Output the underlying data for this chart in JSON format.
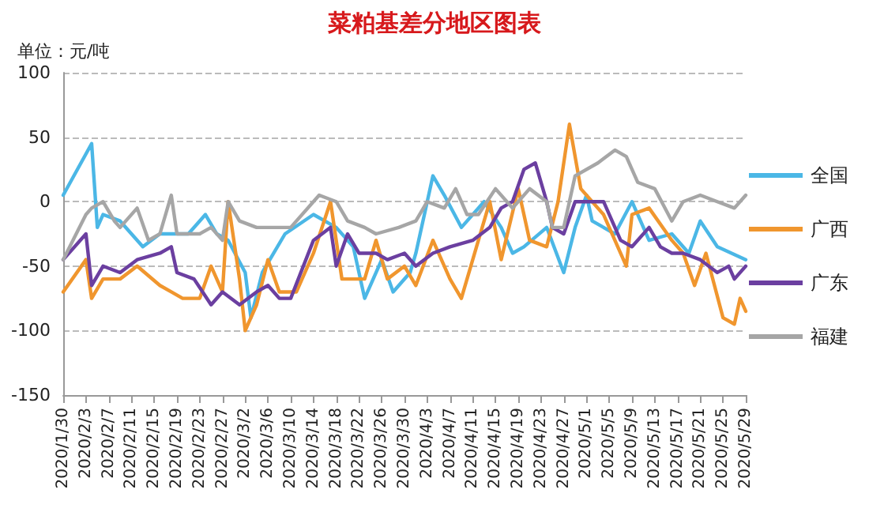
{
  "chart_data": {
    "type": "line",
    "title": "菜粕基差分地区图表",
    "ylabel": "单位：元/吨",
    "xlim": [
      "2020-01-30",
      "2020-05-29"
    ],
    "xticks": [
      {
        "value": "2020-01-30",
        "label": "2020/1/30"
      },
      {
        "value": "2020-02-03",
        "label": "2020/2/3"
      },
      {
        "value": "2020-02-07",
        "label": "2020/2/7"
      },
      {
        "value": "2020-02-11",
        "label": "2020/2/11"
      },
      {
        "value": "2020-02-15",
        "label": "2020/2/15"
      },
      {
        "value": "2020-02-19",
        "label": "2020/2/19"
      },
      {
        "value": "2020-02-23",
        "label": "2020/2/23"
      },
      {
        "value": "2020-02-27",
        "label": "2020/2/27"
      },
      {
        "value": "2020-03-02",
        "label": "2020/3/2"
      },
      {
        "value": "2020-03-06",
        "label": "2020/3/6"
      },
      {
        "value": "2020-03-10",
        "label": "2020/3/10"
      },
      {
        "value": "2020-03-14",
        "label": "2020/3/14"
      },
      {
        "value": "2020-03-18",
        "label": "2020/3/18"
      },
      {
        "value": "2020-03-22",
        "label": "2020/3/22"
      },
      {
        "value": "2020-03-26",
        "label": "2020/3/26"
      },
      {
        "value": "2020-03-30",
        "label": "2020/3/30"
      },
      {
        "value": "2020-04-03",
        "label": "2020/4/3"
      },
      {
        "value": "2020-04-07",
        "label": "2020/4/7"
      },
      {
        "value": "2020-04-11",
        "label": "2020/4/11"
      },
      {
        "value": "2020-04-15",
        "label": "2020/4/15"
      },
      {
        "value": "2020-04-19",
        "label": "2020/4/19"
      },
      {
        "value": "2020-04-23",
        "label": "2020/4/23"
      },
      {
        "value": "2020-04-27",
        "label": "2020/4/27"
      },
      {
        "value": "2020-05-01",
        "label": "2020/5/1"
      },
      {
        "value": "2020-05-05",
        "label": "2020/5/5"
      },
      {
        "value": "2020-05-09",
        "label": "2020/5/9"
      },
      {
        "value": "2020-05-13",
        "label": "2020/5/13"
      },
      {
        "value": "2020-05-17",
        "label": "2020/5/17"
      },
      {
        "value": "2020-05-21",
        "label": "2020/5/21"
      },
      {
        "value": "2020-05-25",
        "label": "2020/5/25"
      },
      {
        "value": "2020-05-29",
        "label": "2020/5/29"
      }
    ],
    "ylim": [
      -150,
      100
    ],
    "yticks": [
      -150,
      -100,
      -50,
      0,
      50,
      100
    ],
    "grid": "y",
    "legend": "right",
    "marker": "none",
    "series": [
      {
        "name": "全国",
        "color": "#4bb7e6",
        "x": [
          "2020-01-30",
          "2020-02-04",
          "2020-02-05",
          "2020-02-06",
          "2020-02-09",
          "2020-02-13",
          "2020-02-16",
          "2020-02-21",
          "2020-02-24",
          "2020-02-26",
          "2020-02-28",
          "2020-03-02",
          "2020-03-03",
          "2020-03-05",
          "2020-03-07",
          "2020-03-09",
          "2020-03-14",
          "2020-03-18",
          "2020-03-21",
          "2020-03-23",
          "2020-03-26",
          "2020-03-28",
          "2020-03-31",
          "2020-04-01",
          "2020-04-04",
          "2020-04-06",
          "2020-04-09",
          "2020-04-13",
          "2020-04-16",
          "2020-04-18",
          "2020-04-20",
          "2020-04-24",
          "2020-04-27",
          "2020-04-29",
          "2020-05-01",
          "2020-05-02",
          "2020-05-06",
          "2020-05-09",
          "2020-05-12",
          "2020-05-16",
          "2020-05-19",
          "2020-05-21",
          "2020-05-24",
          "2020-05-29"
        ],
        "values": [
          5,
          45,
          -20,
          -10,
          -15,
          -35,
          -25,
          -25,
          -10,
          -25,
          -30,
          -55,
          -90,
          -55,
          -40,
          -25,
          -10,
          -20,
          -35,
          -75,
          -45,
          -70,
          -55,
          -40,
          20,
          5,
          -20,
          0,
          -20,
          -40,
          -35,
          -20,
          -55,
          -20,
          5,
          -15,
          -25,
          0,
          -30,
          -25,
          -40,
          -15,
          -35,
          -45
        ]
      },
      {
        "name": "广西",
        "color": "#f0962e",
        "x": [
          "2020-01-30",
          "2020-02-03",
          "2020-02-04",
          "2020-02-06",
          "2020-02-09",
          "2020-02-12",
          "2020-02-16",
          "2020-02-18",
          "2020-02-20",
          "2020-02-23",
          "2020-02-25",
          "2020-02-27",
          "2020-02-28",
          "2020-03-01",
          "2020-03-02",
          "2020-03-04",
          "2020-03-06",
          "2020-03-08",
          "2020-03-11",
          "2020-03-14",
          "2020-03-17",
          "2020-03-19",
          "2020-03-23",
          "2020-03-25",
          "2020-03-27",
          "2020-03-30",
          "2020-04-01",
          "2020-04-04",
          "2020-04-07",
          "2020-04-09",
          "2020-04-12",
          "2020-04-14",
          "2020-04-16",
          "2020-04-19",
          "2020-04-21",
          "2020-04-24",
          "2020-04-26",
          "2020-04-28",
          "2020-04-30",
          "2020-05-04",
          "2020-05-08",
          "2020-05-09",
          "2020-05-12",
          "2020-05-16",
          "2020-05-18",
          "2020-05-20",
          "2020-05-22",
          "2020-05-25",
          "2020-05-27",
          "2020-05-28",
          "2020-05-29"
        ],
        "values": [
          -70,
          -45,
          -75,
          -60,
          -60,
          -50,
          -65,
          -70,
          -75,
          -75,
          -50,
          -70,
          0,
          -60,
          -100,
          -80,
          -45,
          -70,
          -70,
          -40,
          0,
          -60,
          -60,
          -30,
          -60,
          -50,
          -65,
          -30,
          -60,
          -75,
          -30,
          0,
          -45,
          10,
          -30,
          -35,
          0,
          60,
          10,
          -10,
          -50,
          -10,
          -5,
          -30,
          -40,
          -65,
          -40,
          -90,
          -95,
          -75,
          -85
        ]
      },
      {
        "name": "广东",
        "color": "#6b3fa0",
        "x": [
          "2020-01-30",
          "2020-02-03",
          "2020-02-04",
          "2020-02-06",
          "2020-02-09",
          "2020-02-12",
          "2020-02-16",
          "2020-02-18",
          "2020-02-19",
          "2020-02-22",
          "2020-02-25",
          "2020-02-27",
          "2020-03-01",
          "2020-03-04",
          "2020-03-06",
          "2020-03-08",
          "2020-03-10",
          "2020-03-14",
          "2020-03-17",
          "2020-03-18",
          "2020-03-20",
          "2020-03-22",
          "2020-03-25",
          "2020-03-27",
          "2020-03-30",
          "2020-04-01",
          "2020-04-04",
          "2020-04-07",
          "2020-04-11",
          "2020-04-14",
          "2020-04-16",
          "2020-04-18",
          "2020-04-20",
          "2020-04-22",
          "2020-04-24",
          "2020-04-25",
          "2020-04-27",
          "2020-04-29",
          "2020-05-04",
          "2020-05-07",
          "2020-05-09",
          "2020-05-12",
          "2020-05-14",
          "2020-05-16",
          "2020-05-18",
          "2020-05-21",
          "2020-05-24",
          "2020-05-26",
          "2020-05-27",
          "2020-05-29"
        ],
        "values": [
          -45,
          -25,
          -65,
          -50,
          -55,
          -45,
          -40,
          -35,
          -55,
          -60,
          -80,
          -70,
          -80,
          -70,
          -65,
          -75,
          -75,
          -30,
          -20,
          -50,
          -25,
          -40,
          -40,
          -45,
          -40,
          -50,
          -40,
          -35,
          -30,
          -20,
          -5,
          0,
          25,
          30,
          0,
          -20,
          -25,
          0,
          0,
          -30,
          -35,
          -20,
          -35,
          -40,
          -40,
          -45,
          -55,
          -50,
          -60,
          -50
        ]
      },
      {
        "name": "福建",
        "color": "#a6a6a6",
        "x": [
          "2020-01-30",
          "2020-02-03",
          "2020-02-04",
          "2020-02-06",
          "2020-02-08",
          "2020-02-09",
          "2020-02-12",
          "2020-02-14",
          "2020-02-16",
          "2020-02-18",
          "2020-02-19",
          "2020-02-23",
          "2020-02-25",
          "2020-02-27",
          "2020-02-28",
          "2020-03-01",
          "2020-03-04",
          "2020-03-07",
          "2020-03-10",
          "2020-03-15",
          "2020-03-18",
          "2020-03-20",
          "2020-03-23",
          "2020-03-25",
          "2020-03-29",
          "2020-04-01",
          "2020-04-03",
          "2020-04-06",
          "2020-04-08",
          "2020-04-10",
          "2020-04-12",
          "2020-04-15",
          "2020-04-18",
          "2020-04-21",
          "2020-04-24",
          "2020-04-25",
          "2020-04-27",
          "2020-04-29",
          "2020-05-03",
          "2020-05-06",
          "2020-05-08",
          "2020-05-10",
          "2020-05-13",
          "2020-05-16",
          "2020-05-18",
          "2020-05-21",
          "2020-05-24",
          "2020-05-27",
          "2020-05-29"
        ],
        "values": [
          -45,
          -10,
          -5,
          0,
          -15,
          -20,
          -5,
          -30,
          -25,
          5,
          -25,
          -25,
          -20,
          -30,
          0,
          -15,
          -20,
          -20,
          -20,
          5,
          0,
          -15,
          -20,
          -25,
          -20,
          -15,
          0,
          -5,
          10,
          -10,
          -10,
          10,
          -5,
          10,
          0,
          -20,
          -20,
          20,
          30,
          40,
          35,
          15,
          10,
          -15,
          0,
          5,
          0,
          -5,
          5
        ]
      }
    ]
  }
}
